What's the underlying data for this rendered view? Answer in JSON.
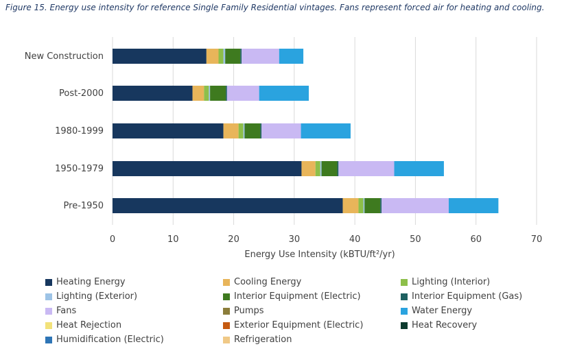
{
  "caption": "Figure 15. Energy use intensity for reference Single Family Residential vintages. Fans represent forced air for heating and cooling.",
  "chart_data": {
    "type": "bar",
    "orientation": "horizontal",
    "stacked": true,
    "categories": [
      "New Construction",
      "Post-2000",
      "1980-1999",
      "1950-1979",
      "Pre-1950"
    ],
    "xlabel": "Energy Use Intensity (kBTU/ft²/yr)",
    "ylabel": "",
    "xlim": [
      0,
      70
    ],
    "xticks": [
      0,
      10,
      20,
      30,
      40,
      50,
      60,
      70
    ],
    "grid": "vertical",
    "legend_position": "bottom",
    "series": [
      {
        "name": "Heating Energy",
        "color": "#17375e",
        "values": [
          15.5,
          13.2,
          18.3,
          31.2,
          38.0
        ]
      },
      {
        "name": "Cooling Energy",
        "color": "#e8b55a",
        "values": [
          2.0,
          1.9,
          2.5,
          2.3,
          2.6
        ]
      },
      {
        "name": "Lighting (Interior)",
        "color": "#8dbf4a",
        "values": [
          0.8,
          0.8,
          0.8,
          0.8,
          0.8
        ]
      },
      {
        "name": "Lighting (Exterior)",
        "color": "#9dc3e6",
        "values": [
          0.3,
          0.2,
          0.2,
          0.2,
          0.2
        ]
      },
      {
        "name": "Interior Equipment (Electric)",
        "color": "#3e7a1f",
        "values": [
          2.5,
          2.6,
          2.6,
          2.6,
          2.6
        ]
      },
      {
        "name": "Interior Equipment (Gas)",
        "color": "#1e6060",
        "values": [
          0.2,
          0.2,
          0.2,
          0.2,
          0.2
        ]
      },
      {
        "name": "Fans",
        "color": "#c9b9f3",
        "values": [
          6.2,
          5.3,
          6.5,
          9.2,
          11.1
        ]
      },
      {
        "name": "Pumps",
        "color": "#8b7d3a",
        "values": [
          0,
          0,
          0,
          0,
          0
        ]
      },
      {
        "name": "Water Energy",
        "color": "#2aa3df",
        "values": [
          4.0,
          8.2,
          8.2,
          8.2,
          8.2
        ]
      },
      {
        "name": "Heat Rejection",
        "color": "#f2e27a",
        "values": [
          0,
          0,
          0,
          0,
          0
        ]
      },
      {
        "name": "Exterior Equipment (Electric)",
        "color": "#c55a11",
        "values": [
          0,
          0,
          0,
          0,
          0
        ]
      },
      {
        "name": "Heat Recovery",
        "color": "#0d3b2e",
        "values": [
          0,
          0,
          0,
          0,
          0
        ]
      },
      {
        "name": "Humidification (Electric)",
        "color": "#2e75b6",
        "values": [
          0,
          0,
          0,
          0,
          0
        ]
      },
      {
        "name": "Refrigeration",
        "color": "#f0c987",
        "values": [
          0,
          0,
          0,
          0,
          0
        ]
      }
    ]
  }
}
